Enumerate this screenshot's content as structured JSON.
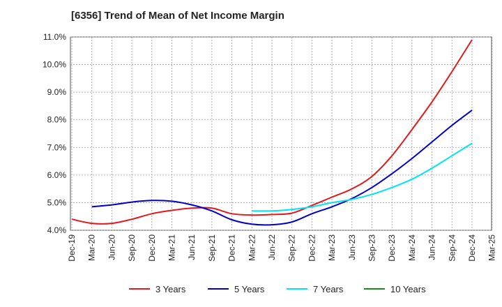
{
  "chart_data": {
    "type": "line",
    "title": "[6356]  Trend of Mean of Net Income Margin",
    "xlabel": "",
    "ylabel": "",
    "ylim": [
      4.0,
      11.0
    ],
    "yticks": [
      4.0,
      5.0,
      6.0,
      7.0,
      8.0,
      9.0,
      10.0,
      11.0
    ],
    "ytick_labels": [
      "4.0%",
      "5.0%",
      "6.0%",
      "7.0%",
      "8.0%",
      "9.0%",
      "10.0%",
      "11.0%"
    ],
    "x": [
      "Dec-19",
      "Mar-20",
      "Jun-20",
      "Sep-20",
      "Dec-20",
      "Mar-21",
      "Jun-21",
      "Sep-21",
      "Dec-21",
      "Mar-22",
      "Jun-22",
      "Sep-22",
      "Dec-22",
      "Mar-23",
      "Jun-23",
      "Sep-23",
      "Dec-23",
      "Mar-24",
      "Jun-24",
      "Sep-24",
      "Dec-24",
      "Mar-25"
    ],
    "grid": true,
    "legend_position": "bottom",
    "series": [
      {
        "name": "3 Years",
        "color": "#e31a1c",
        "values": [
          4.4,
          4.25,
          4.25,
          4.4,
          4.6,
          4.72,
          4.8,
          4.8,
          4.6,
          4.55,
          4.57,
          4.62,
          4.9,
          5.2,
          5.5,
          5.95,
          6.7,
          7.65,
          8.65,
          9.75,
          10.9,
          null
        ]
      },
      {
        "name": "5 Years",
        "color": "#0000cc",
        "values": [
          null,
          4.85,
          4.92,
          5.02,
          5.08,
          5.05,
          4.92,
          4.7,
          4.38,
          4.22,
          4.2,
          4.3,
          4.6,
          4.85,
          5.15,
          5.55,
          6.05,
          6.6,
          7.2,
          7.8,
          8.35,
          null
        ]
      },
      {
        "name": "7 Years",
        "color": "#00e5ee",
        "values": [
          null,
          null,
          null,
          null,
          null,
          null,
          null,
          null,
          null,
          4.7,
          4.7,
          4.75,
          4.85,
          5.0,
          5.12,
          5.3,
          5.55,
          5.85,
          6.25,
          6.7,
          7.15,
          null
        ]
      },
      {
        "name": "10 Years",
        "color": "#1a8a1a",
        "values": [
          null,
          null,
          null,
          null,
          null,
          null,
          null,
          null,
          null,
          null,
          null,
          null,
          null,
          null,
          null,
          null,
          null,
          null,
          null,
          null,
          null,
          null
        ]
      }
    ]
  }
}
